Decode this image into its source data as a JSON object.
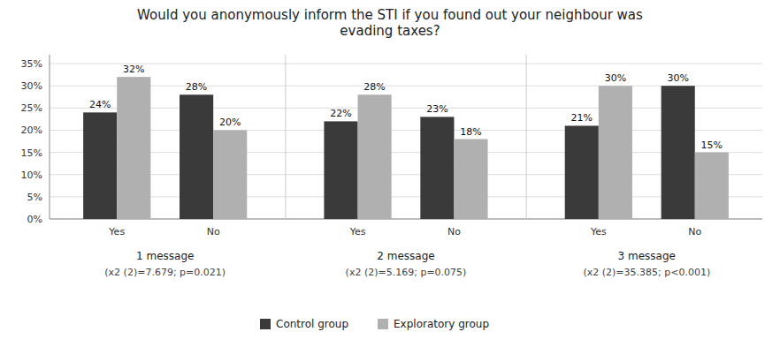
{
  "chart_data": {
    "type": "bar",
    "title": "Would you anonymously inform the STI if you found out your neighbour was\nevading taxes?",
    "categories": [
      "Yes",
      "No",
      "Yes",
      "No",
      "Yes",
      "No"
    ],
    "series": [
      {
        "name": "Control group",
        "color": "#3a3a3a",
        "values": [
          24,
          28,
          22,
          23,
          21,
          30
        ],
        "value_labels": [
          "24%",
          "28%",
          "22%",
          "23%",
          "21%",
          "30%"
        ]
      },
      {
        "name": "Exploratory group",
        "color": "#b0b0b0",
        "values": [
          32,
          20,
          28,
          18,
          30,
          15
        ],
        "value_labels": [
          "32%",
          "20%",
          "28%",
          "18%",
          "30%",
          "15%"
        ]
      }
    ],
    "annotations": [
      {
        "text": "1 message",
        "subtext": "(x2 (2)=7.679; p=0.021)"
      },
      {
        "text": "2 message",
        "subtext": "(x2 (2)=5.169; p=0.075)"
      },
      {
        "text": "3 message",
        "subtext": "(x2 (2)=35.385; p<0.001)"
      }
    ],
    "ylim": [
      0,
      37
    ],
    "yticks": [
      {
        "value": 0,
        "label": "0%"
      },
      {
        "value": 5,
        "label": "5%"
      },
      {
        "value": 10,
        "label": "10%"
      },
      {
        "value": 15,
        "label": "15%"
      },
      {
        "value": 20,
        "label": "20%"
      },
      {
        "value": 25,
        "label": "25%"
      },
      {
        "value": 30,
        "label": "30%"
      },
      {
        "value": 35,
        "label": "35%"
      }
    ],
    "grid": true,
    "data_labels": true,
    "legend": "bottom"
  }
}
